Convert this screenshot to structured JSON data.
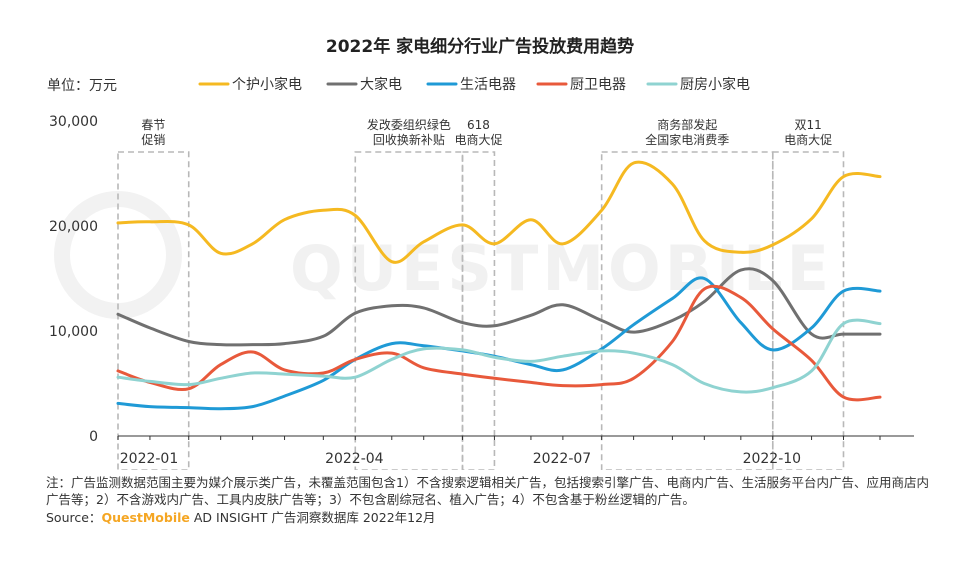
{
  "chart_data": {
    "type": "line",
    "title": "2022年 家电细分行业广告投放费用趋势",
    "unit_label": "单位：万元",
    "ylim": [
      0,
      30000
    ],
    "y_ticks": [
      "0",
      "10,000",
      "20,000",
      "30,000"
    ],
    "x": [
      "2022-01-01",
      "2022-01-15",
      "2022-02-01",
      "2022-02-15",
      "2022-03-01",
      "2022-03-15",
      "2022-04-01",
      "2022-04-15",
      "2022-05-01",
      "2022-05-15",
      "2022-06-01",
      "2022-06-15",
      "2022-07-01",
      "2022-07-15",
      "2022-08-01",
      "2022-08-15",
      "2022-09-01",
      "2022-09-15",
      "2022-10-01",
      "2022-10-15",
      "2022-11-01",
      "2022-11-15",
      "2022-12-01"
    ],
    "x_tick_labels": [
      {
        "label": "2022-01",
        "date": "2022-01-01"
      },
      {
        "label": "2022-04",
        "date": "2022-04-01"
      },
      {
        "label": "2022-07",
        "date": "2022-07-01"
      },
      {
        "label": "2022-10",
        "date": "2022-10-01"
      }
    ],
    "series": [
      {
        "name": "个护小家电",
        "color": "#f5b921",
        "values": [
          20300,
          20400,
          20100,
          17400,
          18300,
          20600,
          21500,
          21000,
          16600,
          18500,
          20100,
          18300,
          20600,
          18300,
          21500,
          26000,
          24000,
          18600,
          17500,
          18200,
          20700,
          24700,
          24700
        ]
      },
      {
        "name": "大家电",
        "color": "#707070",
        "values": [
          11600,
          10300,
          9000,
          8700,
          8700,
          8800,
          9500,
          11700,
          12400,
          12200,
          10800,
          10500,
          11500,
          12500,
          11000,
          9900,
          11000,
          12800,
          15800,
          14800,
          9700,
          9700,
          9700
        ]
      },
      {
        "name": "生活电器",
        "color": "#1f9ad6",
        "values": [
          3100,
          2800,
          2700,
          2600,
          2800,
          3800,
          5300,
          7300,
          8800,
          8600,
          8100,
          7600,
          6800,
          6300,
          8300,
          10600,
          13100,
          15000,
          10800,
          8200,
          10300,
          13800,
          13800
        ]
      },
      {
        "name": "厨卫电器",
        "color": "#e8593b",
        "values": [
          6200,
          5100,
          4500,
          6800,
          8000,
          6300,
          6000,
          7300,
          7900,
          6500,
          5900,
          5500,
          5100,
          4800,
          4900,
          5500,
          9000,
          14000,
          13200,
          10200,
          7200,
          3700,
          3700
        ]
      },
      {
        "name": "厨房小家电",
        "color": "#8fd3d1",
        "values": [
          5600,
          5200,
          4900,
          5500,
          6000,
          5900,
          5700,
          5600,
          7300,
          8300,
          8200,
          7500,
          7100,
          7600,
          8100,
          7900,
          6800,
          5000,
          4200,
          4600,
          6200,
          10700,
          10700
        ]
      }
    ],
    "annotations": [
      {
        "lines": [
          "春节",
          "促销"
        ],
        "from": "2022-01-01",
        "to": "2022-02-01"
      },
      {
        "lines": [
          "发改委组织绿色",
          "回收换新补贴"
        ],
        "from": "2022-04-15",
        "to": "2022-06-01"
      },
      {
        "lines": [
          "618",
          "电商大促"
        ],
        "from": "2022-06-01",
        "to": "2022-06-15"
      },
      {
        "lines": [
          "商务部发起",
          "全国家电消费季"
        ],
        "from": "2022-08-01",
        "to": "2022-10-15"
      },
      {
        "lines": [
          "双11",
          "电商大促"
        ],
        "from": "2022-10-15",
        "to": "2022-11-15"
      }
    ]
  },
  "watermark": "QUESTMOBILE",
  "notes": {
    "text": "注：广告监测数据范围主要为媒介展示类广告，未覆盖范围包含1）不含搜索逻辑相关广告，包括搜索引擎广告、电商内广告、生活服务平台内广告、应用商店内广告等；2）不含游戏内广告、工具内皮肤广告等；3）不包含剧综冠名、植入广告；4）不包含基于粉丝逻辑的广告。"
  },
  "source": {
    "prefix": "Source：",
    "brand": "QuestMobile",
    "suffix": " AD INSIGHT 广告洞察数据库 2022年12月"
  }
}
